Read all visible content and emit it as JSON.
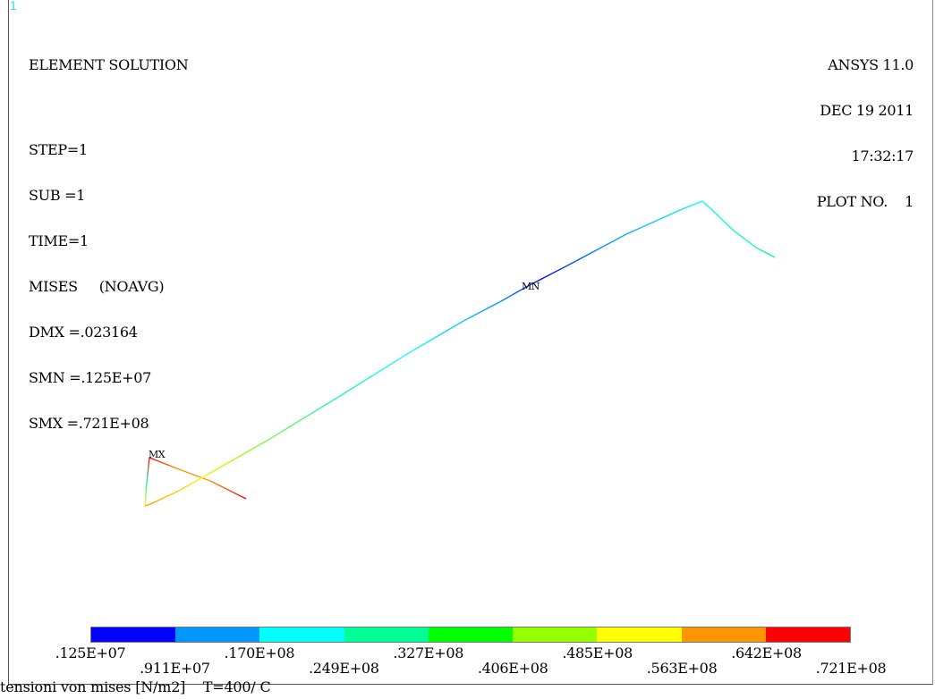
{
  "window_number": "1",
  "info": {
    "title": "ELEMENT SOLUTION",
    "step": "STEP=1",
    "sub": "SUB =1",
    "time": "TIME=1",
    "result": "MISES     (NOAVG)",
    "dmx": "DMX =.023164",
    "smn": "SMN =.125E+07",
    "smx": "SMX =.721E+08"
  },
  "stamp": {
    "program": "ANSYS 11.0",
    "date": "DEC 19 2011",
    "time": "17:32:17",
    "plot": "PLOT NO.    1"
  },
  "markers": {
    "min": "MN",
    "max": "MX"
  },
  "legend": {
    "colors": [
      "#0000ff",
      "#0096ff",
      "#00ffff",
      "#00ff96",
      "#00ff00",
      "#96ff00",
      "#ffff00",
      "#ff9600",
      "#ff0000"
    ],
    "labels": [
      ".125E+07",
      ".911E+07",
      ".170E+08",
      ".249E+08",
      ".327E+08",
      ".406E+08",
      ".485E+08",
      ".563E+08",
      ".642E+08",
      ".721E+08"
    ]
  },
  "footer": "tensioni von mises [N/m2]    T=400/ C"
}
